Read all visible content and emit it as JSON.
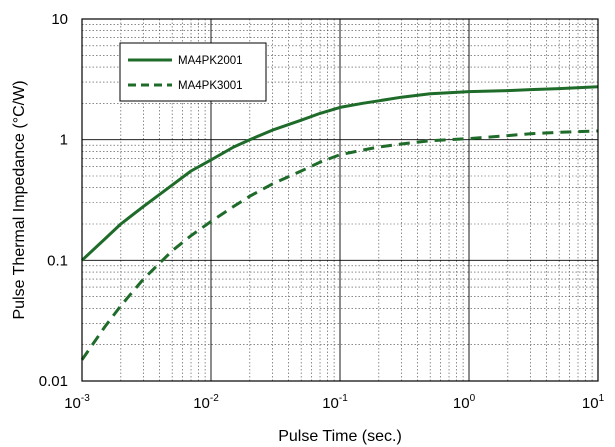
{
  "chart_data": {
    "type": "line",
    "xlabel": "Pulse Time (sec.)",
    "ylabel": "Pulse Thermal Impedance (°C/W)",
    "x_scale": "log",
    "y_scale": "log",
    "xlim": [
      0.001,
      10
    ],
    "ylim": [
      0.01,
      10
    ],
    "grid": "major and minor",
    "legend_position": "top-left",
    "x_ticks": [
      {
        "base": "10",
        "exp": "-3"
      },
      {
        "base": "10",
        "exp": "-2"
      },
      {
        "base": "10",
        "exp": "-1"
      },
      {
        "base": "10",
        "exp": "0"
      },
      {
        "base": "10",
        "exp": "1"
      }
    ],
    "y_ticks": [
      "0.01",
      "0.1",
      "1",
      "10"
    ],
    "series": [
      {
        "name": "MA4PK2001",
        "style": "solid",
        "color": "#1e6b2a",
        "x": [
          0.001,
          0.0015,
          0.002,
          0.003,
          0.005,
          0.007,
          0.01,
          0.015,
          0.02,
          0.03,
          0.05,
          0.07,
          0.1,
          0.15,
          0.2,
          0.3,
          0.5,
          0.7,
          1,
          2,
          3,
          5,
          10
        ],
        "y": [
          0.1,
          0.15,
          0.2,
          0.28,
          0.42,
          0.55,
          0.68,
          0.87,
          1.0,
          1.2,
          1.45,
          1.65,
          1.85,
          2.0,
          2.1,
          2.25,
          2.4,
          2.45,
          2.5,
          2.55,
          2.6,
          2.65,
          2.75
        ]
      },
      {
        "name": "MA4PK3001",
        "style": "dashed",
        "color": "#1e6b2a",
        "x": [
          0.001,
          0.0015,
          0.002,
          0.003,
          0.005,
          0.007,
          0.01,
          0.015,
          0.02,
          0.03,
          0.05,
          0.07,
          0.1,
          0.15,
          0.2,
          0.3,
          0.5,
          0.7,
          1,
          2,
          3,
          5,
          10
        ],
        "y": [
          0.015,
          0.028,
          0.042,
          0.07,
          0.12,
          0.16,
          0.21,
          0.28,
          0.34,
          0.43,
          0.55,
          0.65,
          0.75,
          0.82,
          0.87,
          0.92,
          0.98,
          1.0,
          1.02,
          1.08,
          1.12,
          1.15,
          1.18
        ]
      }
    ]
  }
}
